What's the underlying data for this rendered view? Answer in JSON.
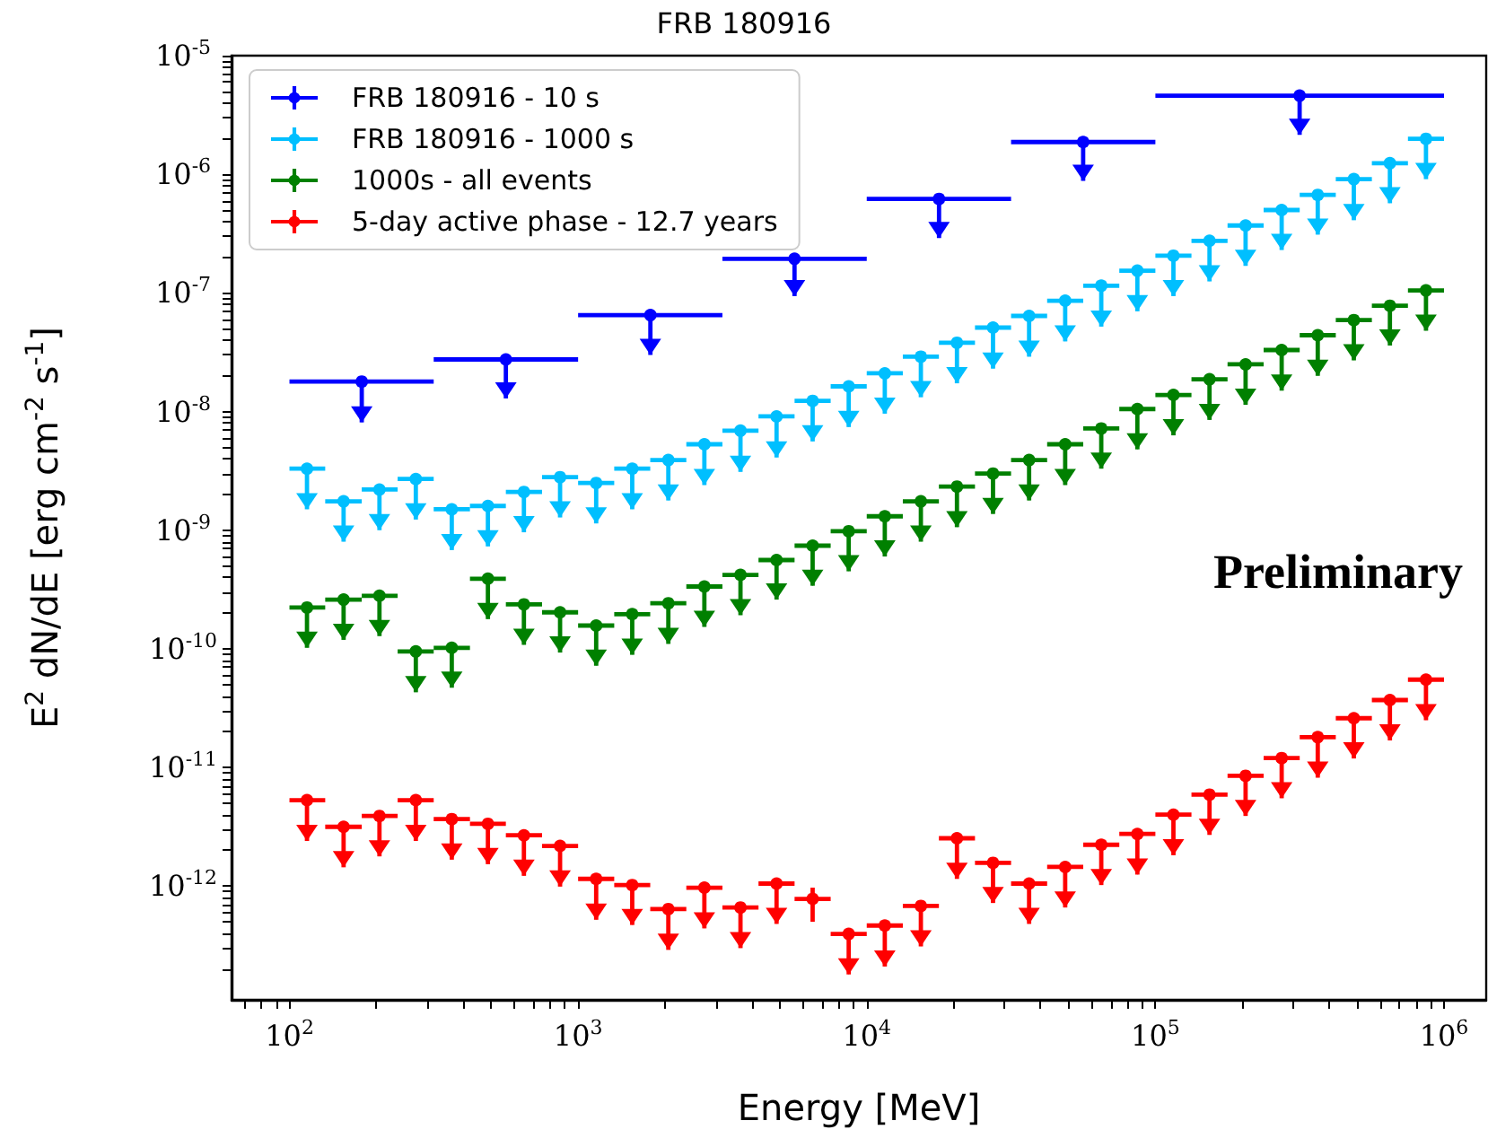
{
  "chart_data": {
    "type": "scatter",
    "title": "FRB 180916",
    "xlabel": "Energy [MeV]",
    "ylabel": "E$^{2}$ dN/dE [erg cm$^{-2}$ s$^{-1}$]",
    "annotations": [
      "Preliminary"
    ],
    "log": "xy",
    "legend": "top left",
    "marker": "circle",
    "xlim": [
      63,
      1400000
    ],
    "ylim": [
      1.1e-13,
      1e-05
    ],
    "xticks": [
      {
        "value": 70,
        "label": null
      },
      {
        "value": 80,
        "label": null
      },
      {
        "value": 90,
        "label": null
      },
      {
        "value": 100,
        "label": "10$^{2}$"
      },
      {
        "value": 200,
        "label": null
      },
      {
        "value": 300,
        "label": null
      },
      {
        "value": 400,
        "label": null
      },
      {
        "value": 500,
        "label": null
      },
      {
        "value": 600,
        "label": null
      },
      {
        "value": 700,
        "label": null
      },
      {
        "value": 800,
        "label": null
      },
      {
        "value": 900,
        "label": null
      },
      {
        "value": 1000,
        "label": "10$^{3}$"
      },
      {
        "value": 2000,
        "label": null
      },
      {
        "value": 3000,
        "label": null
      },
      {
        "value": 4000,
        "label": null
      },
      {
        "value": 5000,
        "label": null
      },
      {
        "value": 6000,
        "label": null
      },
      {
        "value": 7000,
        "label": null
      },
      {
        "value": 8000,
        "label": null
      },
      {
        "value": 9000,
        "label": null
      },
      {
        "value": 10000,
        "label": "10$^{4}$"
      },
      {
        "value": 20000,
        "label": null
      },
      {
        "value": 30000,
        "label": null
      },
      {
        "value": 40000,
        "label": null
      },
      {
        "value": 50000,
        "label": null
      },
      {
        "value": 60000,
        "label": null
      },
      {
        "value": 70000,
        "label": null
      },
      {
        "value": 80000,
        "label": null
      },
      {
        "value": 90000,
        "label": null
      },
      {
        "value": 100000,
        "label": "10$^{5}$"
      },
      {
        "value": 200000,
        "label": null
      },
      {
        "value": 300000,
        "label": null
      },
      {
        "value": 400000,
        "label": null
      },
      {
        "value": 500000,
        "label": null
      },
      {
        "value": 600000,
        "label": null
      },
      {
        "value": 700000,
        "label": null
      },
      {
        "value": 800000,
        "label": null
      },
      {
        "value": 900000,
        "label": null
      },
      {
        "value": 1000000,
        "label": "10$^{6}$"
      }
    ],
    "yticks": [
      {
        "value": 2e-13,
        "label": null
      },
      {
        "value": 3e-13,
        "label": null
      },
      {
        "value": 4e-13,
        "label": null
      },
      {
        "value": 5e-13,
        "label": null
      },
      {
        "value": 6e-13,
        "label": null
      },
      {
        "value": 7e-13,
        "label": null
      },
      {
        "value": 8e-13,
        "label": null
      },
      {
        "value": 9e-13,
        "label": null
      },
      {
        "value": 1e-12,
        "label": "10$^{-12}$"
      },
      {
        "value": 2e-12,
        "label": null
      },
      {
        "value": 3e-12,
        "label": null
      },
      {
        "value": 4e-12,
        "label": null
      },
      {
        "value": 5e-12,
        "label": null
      },
      {
        "value": 6e-12,
        "label": null
      },
      {
        "value": 7e-12,
        "label": null
      },
      {
        "value": 8e-12,
        "label": null
      },
      {
        "value": 9e-12,
        "label": null
      },
      {
        "value": 1e-11,
        "label": "10$^{-11}$"
      },
      {
        "value": 2e-11,
        "label": null
      },
      {
        "value": 3e-11,
        "label": null
      },
      {
        "value": 4e-11,
        "label": null
      },
      {
        "value": 5e-11,
        "label": null
      },
      {
        "value": 6e-11,
        "label": null
      },
      {
        "value": 7e-11,
        "label": null
      },
      {
        "value": 8e-11,
        "label": null
      },
      {
        "value": 9e-11,
        "label": null
      },
      {
        "value": 1e-10,
        "label": "10$^{-10}$"
      },
      {
        "value": 2e-10,
        "label": null
      },
      {
        "value": 3e-10,
        "label": null
      },
      {
        "value": 4e-10,
        "label": null
      },
      {
        "value": 5e-10,
        "label": null
      },
      {
        "value": 6e-10,
        "label": null
      },
      {
        "value": 7e-10,
        "label": null
      },
      {
        "value": 8e-10,
        "label": null
      },
      {
        "value": 9e-10,
        "label": null
      },
      {
        "value": 1e-09,
        "label": "10$^{-9}$"
      },
      {
        "value": 2e-09,
        "label": null
      },
      {
        "value": 3e-09,
        "label": null
      },
      {
        "value": 4e-09,
        "label": null
      },
      {
        "value": 5e-09,
        "label": null
      },
      {
        "value": 6e-09,
        "label": null
      },
      {
        "value": 7e-09,
        "label": null
      },
      {
        "value": 8e-09,
        "label": null
      },
      {
        "value": 9e-09,
        "label": null
      },
      {
        "value": 1e-08,
        "label": "10$^{-8}$"
      },
      {
        "value": 2e-08,
        "label": null
      },
      {
        "value": 3e-08,
        "label": null
      },
      {
        "value": 4e-08,
        "label": null
      },
      {
        "value": 5e-08,
        "label": null
      },
      {
        "value": 6e-08,
        "label": null
      },
      {
        "value": 7e-08,
        "label": null
      },
      {
        "value": 8e-08,
        "label": null
      },
      {
        "value": 9e-08,
        "label": null
      },
      {
        "value": 1e-07,
        "label": "10$^{-7}$"
      },
      {
        "value": 2e-07,
        "label": null
      },
      {
        "value": 3e-07,
        "label": null
      },
      {
        "value": 4e-07,
        "label": null
      },
      {
        "value": 5e-07,
        "label": null
      },
      {
        "value": 6e-07,
        "label": null
      },
      {
        "value": 7e-07,
        "label": null
      },
      {
        "value": 8e-07,
        "label": null
      },
      {
        "value": 9e-07,
        "label": null
      },
      {
        "value": 1e-06,
        "label": "10$^{-6}$"
      },
      {
        "value": 2e-06,
        "label": null
      },
      {
        "value": 3e-06,
        "label": null
      },
      {
        "value": 4e-06,
        "label": null
      },
      {
        "value": 5e-06,
        "label": null
      },
      {
        "value": 6e-06,
        "label": null
      },
      {
        "value": 7e-06,
        "label": null
      },
      {
        "value": 8e-06,
        "label": null
      },
      {
        "value": 9e-06,
        "label": null
      },
      {
        "value": 1e-05,
        "label": "10$^{-5}$"
      }
    ],
    "series": [
      {
        "name": "FRB 180916 - 10 s",
        "color": "#0000ff",
        "x": [
          178,
          562,
          1780,
          5620,
          17800,
          56200,
          316000
        ],
        "values": [
          1.79e-08,
          2.75e-08,
          6.5e-08,
          1.94e-07,
          6.2e-07,
          1.87e-06,
          4.6e-06
        ],
        "xerrors": [
          [
            100,
            316
          ],
          [
            316,
            1000
          ],
          [
            1000,
            3162
          ],
          [
            3162,
            10000
          ],
          [
            10000,
            31623
          ],
          [
            31623,
            100000
          ],
          [
            100000,
            1000000
          ]
        ],
        "errors": [
          [
            8.1e-09,
            1.79e-08
          ],
          [
            1.29e-08,
            2.75e-08
          ],
          [
            3e-08,
            6.5e-08
          ],
          [
            9.4e-08,
            1.94e-07
          ],
          [
            2.9e-07,
            6.2e-07
          ],
          [
            8.8e-07,
            1.87e-06
          ],
          [
            2.15e-06,
            4.6e-06
          ]
        ]
      },
      {
        "name": "FRB 180916 - 1000 s",
        "color": "#00bfff",
        "x": [
          115,
          154,
          205,
          274,
          365,
          487,
          649,
          866,
          1155,
          1540,
          2054,
          2738,
          3652,
          4870,
          6494,
          8660,
          11548,
          15399,
          20535,
          27384,
          36517,
          48697,
          64938,
          86596,
          115478,
          153993,
          205353,
          273842,
          365174,
          486968,
          649382,
          865964
        ],
        "values": [
          3.3e-09,
          1.75e-09,
          2.2e-09,
          2.7e-09,
          1.5e-09,
          1.6e-09,
          2.1e-09,
          2.8e-09,
          2.5e-09,
          3.3e-09,
          3.9e-09,
          5.3e-09,
          6.9e-09,
          9.1e-09,
          1.23e-08,
          1.63e-08,
          2.1e-08,
          2.9e-08,
          3.8e-08,
          5.1e-08,
          6.4e-08,
          8.6e-08,
          1.15e-07,
          1.54e-07,
          2.06e-07,
          2.75e-07,
          3.7e-07,
          5e-07,
          6.7e-07,
          9.1e-07,
          1.24e-06,
          1.99e-06
        ],
        "xerrors": [
          [
            100,
            133
          ],
          [
            133,
            178
          ],
          [
            178,
            237
          ],
          [
            237,
            316
          ],
          [
            316,
            422
          ],
          [
            422,
            562
          ],
          [
            562,
            750
          ],
          [
            750,
            1000
          ],
          [
            1000,
            1334
          ],
          [
            1334,
            1778
          ],
          [
            1778,
            2371
          ],
          [
            2371,
            3162
          ],
          [
            3162,
            4217
          ],
          [
            4217,
            5623
          ],
          [
            5623,
            7499
          ],
          [
            7499,
            10000
          ],
          [
            10000,
            13335
          ],
          [
            13335,
            17783
          ],
          [
            17783,
            23714
          ],
          [
            23714,
            31623
          ],
          [
            31623,
            42170
          ],
          [
            42170,
            56234
          ],
          [
            56234,
            74989
          ],
          [
            74989,
            100000
          ],
          [
            100000,
            133352
          ],
          [
            133352,
            177828
          ],
          [
            177828,
            237137
          ],
          [
            237137,
            316228
          ],
          [
            316228,
            421697
          ],
          [
            421697,
            562341
          ],
          [
            562341,
            749894
          ],
          [
            749894,
            1000000
          ]
        ],
        "errors": [
          [
            1.5e-09,
            3.3e-09
          ],
          [
            8e-10,
            1.75e-09
          ],
          [
            1e-09,
            2.2e-09
          ],
          [
            1.23e-09,
            2.7e-09
          ],
          [
            6.8e-10,
            1.5e-09
          ],
          [
            7.3e-10,
            1.6e-09
          ],
          [
            9.6e-10,
            2.1e-09
          ],
          [
            1.28e-09,
            2.8e-09
          ],
          [
            1.14e-09,
            2.5e-09
          ],
          [
            1.5e-09,
            3.3e-09
          ],
          [
            1.78e-09,
            3.9e-09
          ],
          [
            2.4e-09,
            5.3e-09
          ],
          [
            3.1e-09,
            6.9e-09
          ],
          [
            4.1e-09,
            9.1e-09
          ],
          [
            5.6e-09,
            1.23e-08
          ],
          [
            7.4e-09,
            1.63e-08
          ],
          [
            9.6e-09,
            2.1e-08
          ],
          [
            1.32e-08,
            2.9e-08
          ],
          [
            1.73e-08,
            3.8e-08
          ],
          [
            2.3e-08,
            5.1e-08
          ],
          [
            2.9e-08,
            6.4e-08
          ],
          [
            3.9e-08,
            8.6e-08
          ],
          [
            5.2e-08,
            1.15e-07
          ],
          [
            7e-08,
            1.54e-07
          ],
          [
            9.4e-08,
            2.06e-07
          ],
          [
            1.25e-07,
            2.75e-07
          ],
          [
            1.69e-07,
            3.7e-07
          ],
          [
            2.3e-07,
            5e-07
          ],
          [
            3.1e-07,
            6.7e-07
          ],
          [
            4.1e-07,
            9.1e-07
          ],
          [
            5.7e-07,
            1.24e-06
          ],
          [
            9.1e-07,
            1.99e-06
          ]
        ]
      },
      {
        "name": "1000s - all events",
        "color": "#008000",
        "x": [
          115,
          154,
          205,
          274,
          365,
          487,
          649,
          866,
          1155,
          1540,
          2054,
          2738,
          3652,
          4870,
          6494,
          8660,
          11548,
          15399,
          20535,
          27384,
          36517,
          48697,
          64938,
          86596,
          115478,
          153993,
          205353,
          273842,
          365174,
          486968,
          649382,
          865964
        ],
        "values": [
          2.23e-10,
          2.6e-10,
          2.8e-10,
          9.5e-11,
          1.02e-10,
          3.9e-10,
          2.37e-10,
          2.03e-10,
          1.57e-10,
          1.96e-10,
          2.42e-10,
          3.35e-10,
          4.2e-10,
          5.6e-10,
          7.4e-10,
          9.8e-10,
          1.31e-09,
          1.75e-09,
          2.33e-09,
          3e-09,
          3.9e-09,
          5.3e-09,
          7.2e-09,
          1.05e-08,
          1.38e-08,
          1.87e-08,
          2.5e-08,
          3.3e-08,
          4.4e-08,
          5.9e-08,
          7.8e-08,
          1.05e-07
        ],
        "xerrors": [
          [
            100,
            133
          ],
          [
            133,
            178
          ],
          [
            178,
            237
          ],
          [
            237,
            316
          ],
          [
            316,
            422
          ],
          [
            422,
            562
          ],
          [
            562,
            750
          ],
          [
            750,
            1000
          ],
          [
            1000,
            1334
          ],
          [
            1334,
            1778
          ],
          [
            1778,
            2371
          ],
          [
            2371,
            3162
          ],
          [
            3162,
            4217
          ],
          [
            4217,
            5623
          ],
          [
            5623,
            7499
          ],
          [
            7499,
            10000
          ],
          [
            10000,
            13335
          ],
          [
            13335,
            17783
          ],
          [
            17783,
            23714
          ],
          [
            23714,
            31623
          ],
          [
            31623,
            42170
          ],
          [
            42170,
            56234
          ],
          [
            56234,
            74989
          ],
          [
            74989,
            100000
          ],
          [
            100000,
            133352
          ],
          [
            133352,
            177828
          ],
          [
            177828,
            237137
          ],
          [
            237137,
            316228
          ],
          [
            316228,
            421697
          ],
          [
            421697,
            562341
          ],
          [
            562341,
            749894
          ],
          [
            749894,
            1000000
          ]
        ],
        "errors": [
          [
            1.02e-10,
            2.23e-10
          ],
          [
            1.19e-10,
            2.6e-10
          ],
          [
            1.28e-10,
            2.8e-10
          ],
          [
            4.3e-11,
            9.5e-11
          ],
          [
            4.7e-11,
            1.02e-10
          ],
          [
            1.78e-10,
            3.9e-10
          ],
          [
            1.08e-10,
            2.37e-10
          ],
          [
            9.3e-11,
            2.03e-10
          ],
          [
            7.2e-11,
            1.57e-10
          ],
          [
            8.9e-11,
            1.96e-10
          ],
          [
            1.1e-10,
            2.42e-10
          ],
          [
            1.53e-10,
            3.35e-10
          ],
          [
            1.92e-10,
            4.2e-10
          ],
          [
            2.6e-10,
            5.6e-10
          ],
          [
            3.4e-10,
            7.4e-10
          ],
          [
            4.5e-10,
            9.8e-10
          ],
          [
            6e-10,
            1.31e-09
          ],
          [
            8e-10,
            1.75e-09
          ],
          [
            1.06e-09,
            2.33e-09
          ],
          [
            1.37e-09,
            3e-09
          ],
          [
            1.78e-09,
            3.9e-09
          ],
          [
            2.4e-09,
            5.3e-09
          ],
          [
            3.3e-09,
            7.2e-09
          ],
          [
            4.8e-09,
            1.05e-08
          ],
          [
            6.3e-09,
            1.38e-08
          ],
          [
            8.5e-09,
            1.87e-08
          ],
          [
            1.14e-08,
            2.5e-08
          ],
          [
            1.5e-08,
            3.3e-08
          ],
          [
            2e-08,
            4.4e-08
          ],
          [
            2.7e-08,
            5.9e-08
          ],
          [
            3.6e-08,
            7.8e-08
          ],
          [
            4.8e-08,
            1.05e-07
          ]
        ]
      },
      {
        "name": "5-day active phase - 12.7 years",
        "color": "#ff0000",
        "x": [
          115,
          154,
          205,
          274,
          365,
          487,
          649,
          866,
          1155,
          1540,
          2054,
          2738,
          3652,
          4870,
          6494,
          8660,
          11548,
          15399,
          20535,
          27384,
          36517,
          48697,
          64938,
          86596,
          115478,
          153993,
          205353,
          273842,
          365174,
          486968,
          649382,
          865964
        ],
        "values": [
          5.3e-12,
          3.16e-12,
          3.9e-12,
          5.3e-12,
          3.67e-12,
          3.35e-12,
          2.68e-12,
          2.18e-12,
          1.15e-12,
          1.02e-12,
          6.4e-13,
          9.7e-13,
          6.6e-13,
          1.05e-12,
          7.8e-13,
          3.95e-13,
          4.65e-13,
          6.8e-13,
          2.53e-12,
          1.57e-12,
          1.05e-12,
          1.45e-12,
          2.23e-12,
          2.75e-12,
          4e-12,
          5.9e-12,
          8.5e-12,
          1.2e-11,
          1.8e-11,
          2.6e-11,
          3.7e-11,
          5.5e-11
        ],
        "xerrors": [
          [
            100,
            133
          ],
          [
            133,
            178
          ],
          [
            178,
            237
          ],
          [
            237,
            316
          ],
          [
            316,
            422
          ],
          [
            422,
            562
          ],
          [
            562,
            750
          ],
          [
            750,
            1000
          ],
          [
            1000,
            1334
          ],
          [
            1334,
            1778
          ],
          [
            1778,
            2371
          ],
          [
            2371,
            3162
          ],
          [
            3162,
            4217
          ],
          [
            4217,
            5623
          ],
          [
            5623,
            7499
          ],
          [
            7499,
            10000
          ],
          [
            10000,
            13335
          ],
          [
            13335,
            17783
          ],
          [
            17783,
            23714
          ],
          [
            23714,
            31623
          ],
          [
            31623,
            42170
          ],
          [
            42170,
            56234
          ],
          [
            56234,
            74989
          ],
          [
            74989,
            100000
          ],
          [
            100000,
            133352
          ],
          [
            133352,
            177828
          ],
          [
            177828,
            237137
          ],
          [
            237137,
            316228
          ],
          [
            316228,
            421697
          ],
          [
            421697,
            562341
          ],
          [
            562341,
            749894
          ],
          [
            749894,
            1000000
          ]
        ],
        "errors": [
          [
            2.4e-12,
            5.3e-12
          ],
          [
            1.44e-12,
            3.16e-12
          ],
          [
            1.78e-12,
            3.9e-12
          ],
          [
            2.4e-12,
            5.3e-12
          ],
          [
            1.67e-12,
            3.67e-12
          ],
          [
            1.53e-12,
            3.35e-12
          ],
          [
            1.22e-12,
            2.68e-12
          ],
          [
            9.9e-13,
            2.18e-12
          ],
          [
            5.2e-13,
            1.15e-12
          ],
          [
            4.7e-13,
            1.02e-12
          ],
          [
            2.9e-13,
            6.4e-13
          ],
          [
            4.4e-13,
            9.7e-13
          ],
          [
            3e-13,
            6.6e-13
          ],
          [
            4.8e-13,
            1.05e-12
          ],
          [
            5e-13,
            9.7e-13
          ],
          [
            1.8e-13,
            3.95e-13
          ],
          [
            2.1e-13,
            4.65e-13
          ],
          [
            3.1e-13,
            6.8e-13
          ],
          [
            1.15e-12,
            2.53e-12
          ],
          [
            7.2e-13,
            1.57e-12
          ],
          [
            4.8e-13,
            1.05e-12
          ],
          [
            6.6e-13,
            1.45e-12
          ],
          [
            1.02e-12,
            2.23e-12
          ],
          [
            1.25e-12,
            2.75e-12
          ],
          [
            1.82e-12,
            4e-12
          ],
          [
            2.7e-12,
            5.9e-12
          ],
          [
            3.9e-12,
            8.5e-12
          ],
          [
            5.5e-12,
            1.2e-11
          ],
          [
            8.2e-12,
            1.8e-11
          ],
          [
            1.19e-11,
            2.6e-11
          ],
          [
            1.69e-11,
            3.7e-11
          ],
          [
            2.5e-11,
            5.5e-11
          ]
        ]
      }
    ]
  }
}
